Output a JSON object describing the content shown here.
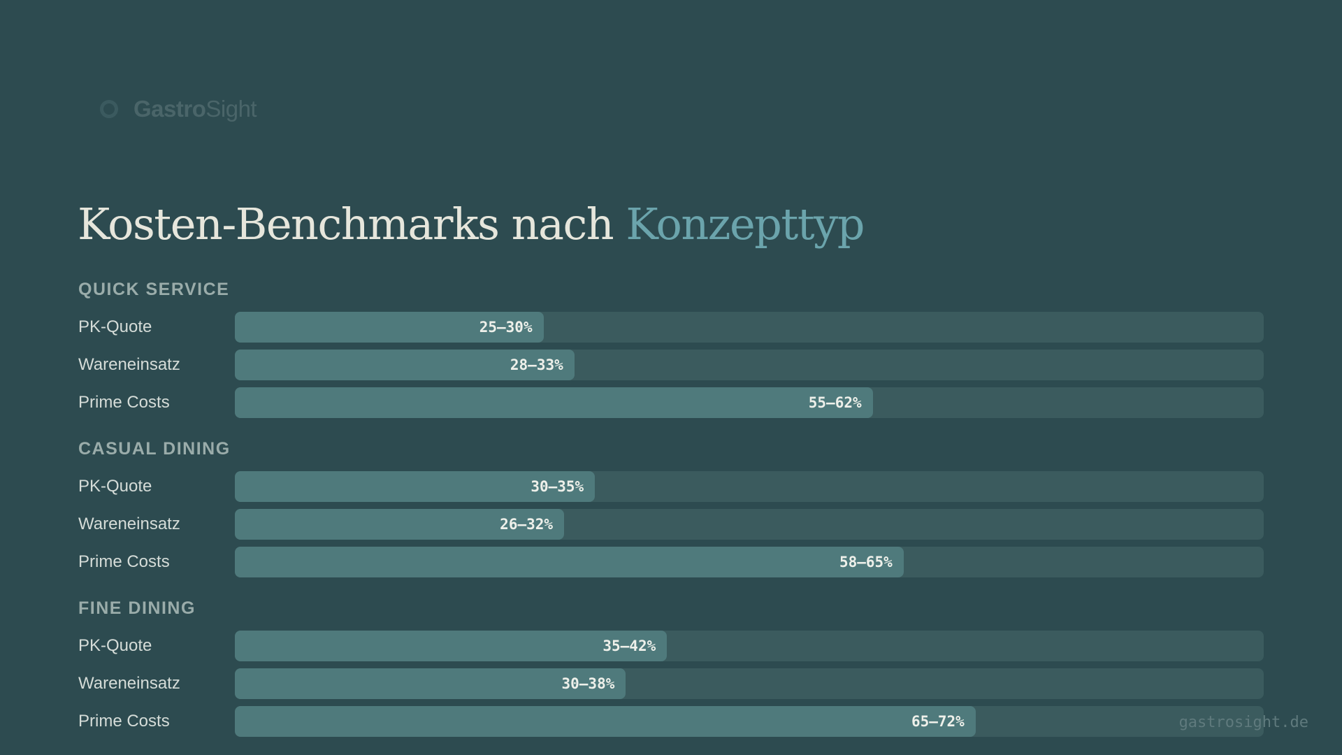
{
  "brand": {
    "name_strong": "Gastro",
    "name_light": "Sight",
    "icon": "ring-logo-icon"
  },
  "title": {
    "main": "Kosten-Benchmarks nach",
    "accent": "Konzepttyp"
  },
  "footer": {
    "url": "gastrosight.de"
  },
  "colors": {
    "background": "#2d4b50",
    "track": "#3b5b5e",
    "fill": "#4f7a7c",
    "accent": "#6ba4ac",
    "title": "#e6e6dc"
  },
  "chart_data": {
    "type": "bar",
    "orientation": "horizontal",
    "xlim": [
      0,
      100
    ],
    "unit": "%",
    "groups": [
      {
        "name": "QUICK SERVICE",
        "rows": [
          {
            "label": "PK-Quote",
            "range": [
              25,
              30
            ],
            "value_label": "25–30%"
          },
          {
            "label": "Wareneinsatz",
            "range": [
              28,
              33
            ],
            "value_label": "28–33%"
          },
          {
            "label": "Prime Costs",
            "range": [
              55,
              62
            ],
            "value_label": "55–62%"
          }
        ]
      },
      {
        "name": "CASUAL DINING",
        "rows": [
          {
            "label": "PK-Quote",
            "range": [
              30,
              35
            ],
            "value_label": "30–35%"
          },
          {
            "label": "Wareneinsatz",
            "range": [
              26,
              32
            ],
            "value_label": "26–32%"
          },
          {
            "label": "Prime Costs",
            "range": [
              58,
              65
            ],
            "value_label": "58–65%"
          }
        ]
      },
      {
        "name": "FINE DINING",
        "rows": [
          {
            "label": "PK-Quote",
            "range": [
              35,
              42
            ],
            "value_label": "35–42%"
          },
          {
            "label": "Wareneinsatz",
            "range": [
              30,
              38
            ],
            "value_label": "30–38%"
          },
          {
            "label": "Prime Costs",
            "range": [
              65,
              72
            ],
            "value_label": "65–72%"
          }
        ]
      }
    ]
  }
}
